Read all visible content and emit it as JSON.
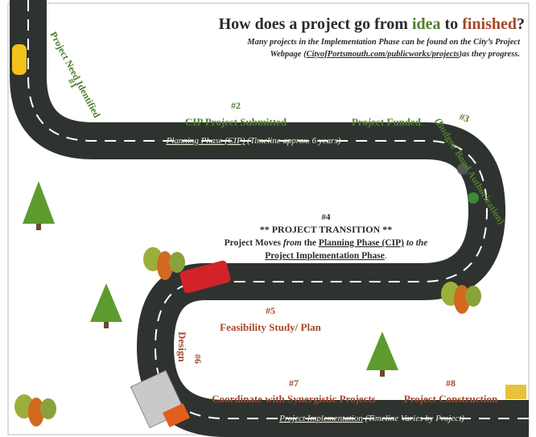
{
  "title": {
    "prefix": "How does a project go from ",
    "idea": "idea",
    "middle": " to ",
    "finished": "finished",
    "suffix": "?"
  },
  "subtitle": {
    "line1": "Many projects in the Implementation Phase can be found on the City’s Project",
    "line2_start": "Webpage (",
    "link": "CityofPortsmouth.com/publicworks/projects",
    "line2_end": ")as they progress."
  },
  "steps": [
    {
      "number": "#1",
      "label": "Project Need Identified"
    },
    {
      "number": "#2",
      "label": "CIP Project Submitted"
    },
    {
      "number": "#3",
      "label": "Project Funded",
      "detail": "(Budget/ Bond Authorization)"
    },
    {
      "number": "#4",
      "label": "** PROJECT TRANSITION **",
      "text_1": "Project Moves ",
      "from": "from",
      "text_2": " the ",
      "planning_phase": "Planning Phase (CIP)",
      "text_3": " to the",
      "implementation_phase": "Project Implementation Phase",
      "text_4": "."
    },
    {
      "number": "#5",
      "label": "Feasibility Study/ Plan"
    },
    {
      "number": "#6",
      "label": "Design"
    },
    {
      "number": "#7",
      "label": "Coordinate with Synergistic Projects"
    },
    {
      "number": "#8",
      "label": "Project Construction"
    }
  ],
  "phases": [
    {
      "name": "Planning Phase (CIP)",
      "timeline": " (Timeline approx. 6 years)"
    },
    {
      "name": "Project Implementation",
      "timeline": " (Timeline Varies by Project)"
    }
  ]
}
